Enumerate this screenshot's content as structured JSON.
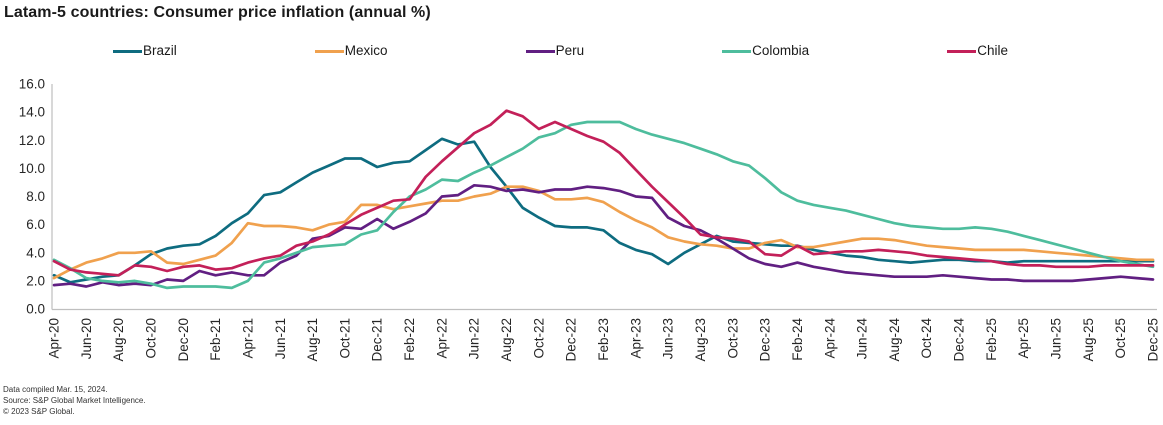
{
  "chart_data": {
    "type": "line",
    "title": "Latam-5 countries: Consumer price inflation (annual %)",
    "xlabel": "",
    "ylabel": "",
    "ylim": [
      0,
      16
    ],
    "ytick_step": 2,
    "ytick_labels": [
      "0.0",
      "2.0",
      "4.0",
      "6.0",
      "8.0",
      "10.0",
      "12.0",
      "14.0",
      "16.0"
    ],
    "x_frequency": "monthly",
    "x_start": "Apr-20",
    "x_end": "Dec-25",
    "xtick_labels": [
      "Apr-20",
      "Jun-20",
      "Aug-20",
      "Oct-20",
      "Dec-20",
      "Feb-21",
      "Apr-21",
      "Jun-21",
      "Aug-21",
      "Oct-21",
      "Dec-21",
      "Feb-22",
      "Apr-22",
      "Jun-22",
      "Aug-22",
      "Oct-22",
      "Dec-22",
      "Feb-23",
      "Apr-23",
      "Jun-23",
      "Aug-23",
      "Oct-23",
      "Dec-23",
      "Feb-24",
      "Apr-24",
      "Jun-24",
      "Aug-24",
      "Oct-24",
      "Dec-24",
      "Feb-25",
      "Apr-25",
      "Jun-25",
      "Aug-25",
      "Oct-25",
      "Dec-25"
    ],
    "grid": false,
    "legend_position": "top",
    "axis_color": "#bfbfbf",
    "tick_label_color": "#262626",
    "series": [
      {
        "name": "Brazil",
        "color": "#0e6c80",
        "values": [
          2.4,
          1.9,
          2.1,
          2.3,
          2.4,
          3.1,
          3.9,
          4.3,
          4.5,
          4.6,
          5.2,
          6.1,
          6.8,
          8.1,
          8.3,
          9.0,
          9.7,
          10.2,
          10.7,
          10.7,
          10.1,
          10.4,
          10.5,
          11.3,
          12.1,
          11.7,
          11.9,
          10.1,
          8.7,
          7.2,
          6.5,
          5.9,
          5.8,
          5.8,
          5.6,
          4.7,
          4.2,
          3.9,
          3.2,
          4.0,
          4.6,
          5.2,
          4.8,
          4.7,
          4.6,
          4.5,
          4.5,
          4.2,
          4.0,
          3.8,
          3.7,
          3.5,
          3.4,
          3.3,
          3.4,
          3.5,
          3.5,
          3.4,
          3.4,
          3.3,
          3.4,
          3.4,
          3.4,
          3.4,
          3.4,
          3.4,
          3.4,
          3.4,
          3.4
        ]
      },
      {
        "name": "Mexico",
        "color": "#f0a14e",
        "values": [
          2.2,
          2.8,
          3.3,
          3.6,
          4.0,
          4.0,
          4.1,
          3.3,
          3.2,
          3.5,
          3.8,
          4.7,
          6.1,
          5.9,
          5.9,
          5.8,
          5.6,
          6.0,
          6.2,
          7.4,
          7.4,
          7.1,
          7.3,
          7.5,
          7.7,
          7.7,
          8.0,
          8.2,
          8.7,
          8.7,
          8.4,
          7.8,
          7.8,
          7.9,
          7.6,
          6.9,
          6.3,
          5.8,
          5.1,
          4.8,
          4.6,
          4.5,
          4.3,
          4.3,
          4.7,
          4.9,
          4.4,
          4.4,
          4.6,
          4.8,
          5.0,
          5.0,
          4.9,
          4.7,
          4.5,
          4.4,
          4.3,
          4.2,
          4.2,
          4.2,
          4.2,
          4.1,
          4.0,
          3.9,
          3.8,
          3.7,
          3.6,
          3.5,
          3.5
        ]
      },
      {
        "name": "Peru",
        "color": "#611f82",
        "values": [
          1.7,
          1.8,
          1.6,
          1.9,
          1.7,
          1.8,
          1.7,
          2.1,
          2.0,
          2.7,
          2.4,
          2.6,
          2.4,
          2.4,
          3.3,
          3.8,
          5.0,
          5.2,
          5.8,
          5.7,
          6.4,
          5.7,
          6.2,
          6.8,
          8.0,
          8.1,
          8.8,
          8.7,
          8.4,
          8.5,
          8.3,
          8.5,
          8.5,
          8.7,
          8.6,
          8.4,
          8.0,
          7.9,
          6.5,
          5.9,
          5.6,
          5.0,
          4.3,
          3.6,
          3.2,
          3.0,
          3.3,
          3.0,
          2.8,
          2.6,
          2.5,
          2.4,
          2.3,
          2.3,
          2.3,
          2.4,
          2.3,
          2.2,
          2.1,
          2.1,
          2.0,
          2.0,
          2.0,
          2.0,
          2.1,
          2.2,
          2.3,
          2.2,
          2.1
        ]
      },
      {
        "name": "Colombia",
        "color": "#4ebd9d",
        "values": [
          3.5,
          2.9,
          2.2,
          2.0,
          1.9,
          2.0,
          1.8,
          1.5,
          1.6,
          1.6,
          1.6,
          1.5,
          2.0,
          3.3,
          3.6,
          4.0,
          4.4,
          4.5,
          4.6,
          5.3,
          5.6,
          6.9,
          8.0,
          8.5,
          9.2,
          9.1,
          9.7,
          10.2,
          10.8,
          11.4,
          12.2,
          12.5,
          13.1,
          13.3,
          13.3,
          13.3,
          12.8,
          12.4,
          12.1,
          11.8,
          11.4,
          11.0,
          10.5,
          10.2,
          9.3,
          8.3,
          7.7,
          7.4,
          7.2,
          7.0,
          6.7,
          6.4,
          6.1,
          5.9,
          5.8,
          5.7,
          5.7,
          5.8,
          5.7,
          5.5,
          5.2,
          4.9,
          4.6,
          4.3,
          4.0,
          3.7,
          3.4,
          3.2,
          3.0
        ]
      },
      {
        "name": "Chile",
        "color": "#c32059",
        "values": [
          3.4,
          2.8,
          2.6,
          2.5,
          2.4,
          3.1,
          3.0,
          2.7,
          3.0,
          3.1,
          2.8,
          2.9,
          3.3,
          3.6,
          3.8,
          4.5,
          4.8,
          5.3,
          6.0,
          6.7,
          7.2,
          7.7,
          7.8,
          9.4,
          10.5,
          11.5,
          12.5,
          13.1,
          14.1,
          13.7,
          12.8,
          13.3,
          12.8,
          12.3,
          11.9,
          11.1,
          9.9,
          8.7,
          7.6,
          6.5,
          5.3,
          5.1,
          5.0,
          4.8,
          3.9,
          3.8,
          4.5,
          3.9,
          4.0,
          4.1,
          4.1,
          4.2,
          4.1,
          4.0,
          3.8,
          3.7,
          3.6,
          3.5,
          3.4,
          3.2,
          3.1,
          3.1,
          3.0,
          3.0,
          3.0,
          3.1,
          3.1,
          3.1,
          3.1
        ]
      }
    ]
  },
  "footer": {
    "compiled": "Data compiled  Mar. 15, 2024.",
    "source": "Source: S&P Global Market Intelligence.",
    "copyright": "© 2023 S&P Global."
  }
}
